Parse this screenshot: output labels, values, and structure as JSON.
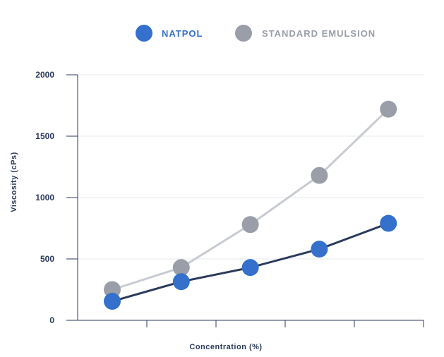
{
  "chart_data": {
    "type": "line",
    "title": "",
    "xlabel": "Concentration (%)",
    "ylabel": "Viscosity (cPs)",
    "ylim": [
      0,
      2000
    ],
    "yticks": [
      0,
      500,
      1000,
      1500,
      2000
    ],
    "x": [
      1,
      2,
      3,
      4,
      5
    ],
    "grid": "horizontal",
    "legend_position": "top-center",
    "series": [
      {
        "name": "NATPOL",
        "color": "#3470cc",
        "line_color": "#2b3a5c",
        "values": [
          155,
          315,
          430,
          580,
          790
        ]
      },
      {
        "name": "STANDARD EMULSION",
        "color": "#999ea8",
        "line_color": "#c8cbd2",
        "values": [
          250,
          430,
          780,
          1180,
          1720
        ]
      }
    ]
  }
}
